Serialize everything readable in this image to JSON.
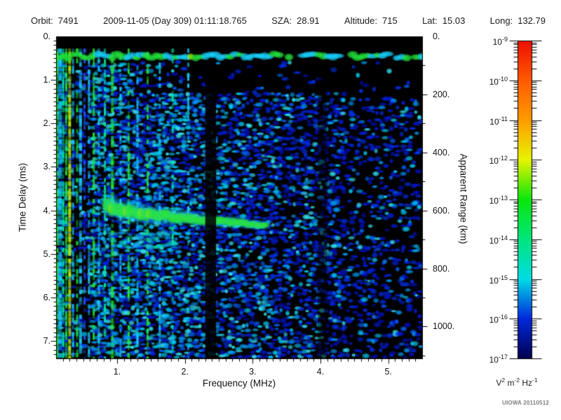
{
  "header": {
    "items": [
      {
        "label": "Orbit:",
        "value": "7491"
      },
      {
        "label": "",
        "value": "2009-11-05 (Day 309) 01:11:18.765"
      },
      {
        "label": "SZA:",
        "value": "28.91"
      },
      {
        "label": "Altitude:",
        "value": "715"
      },
      {
        "label": "Lat:",
        "value": "15.03"
      },
      {
        "label": "Long:",
        "value": "132.79"
      }
    ]
  },
  "credit": "UIOWA 20110512",
  "chart_data": {
    "type": "heatmap",
    "title": "",
    "xlabel": "Frequency (MHz)",
    "ylabel": "Time Delay (ms)",
    "ylabel_right": "Apparent Range (km)",
    "x_range": [
      0.1,
      5.5
    ],
    "x_major_ticks": [
      {
        "v": 1,
        "label": "1."
      },
      {
        "v": 2,
        "label": "2."
      },
      {
        "v": 3,
        "label": "3."
      },
      {
        "v": 4,
        "label": "4."
      },
      {
        "v": 5,
        "label": "5."
      }
    ],
    "x_minor_step": 0.1,
    "y_range": [
      0,
      7.4
    ],
    "y_major_ticks": [
      {
        "v": 0,
        "label": "0."
      },
      {
        "v": 1,
        "label": "1."
      },
      {
        "v": 2,
        "label": "2."
      },
      {
        "v": 3,
        "label": "3."
      },
      {
        "v": 4,
        "label": "4."
      },
      {
        "v": 5,
        "label": "5."
      },
      {
        "v": 6,
        "label": "6."
      },
      {
        "v": 7,
        "label": "7."
      }
    ],
    "y_minor_step": 0.1,
    "right_range": [
      0,
      1110
    ],
    "right_major_ticks": [
      {
        "v": 0,
        "label": "0."
      },
      {
        "v": 200,
        "label": "200."
      },
      {
        "v": 400,
        "label": "400."
      },
      {
        "v": 600,
        "label": "600."
      },
      {
        "v": 800,
        "label": "800."
      },
      {
        "v": 1000,
        "label": "1000."
      }
    ],
    "right_minor_step": 100,
    "colorbar": {
      "label_base": "10",
      "exponents": [
        "-9",
        "-10",
        "-11",
        "-12",
        "-13",
        "-14",
        "-15",
        "-16",
        "-17"
      ],
      "stops": [
        "#ee0e00",
        "#ff5a00",
        "#ff9c00",
        "#e8f400",
        "#0ce60c",
        "#00e67d",
        "#00dce6",
        "#0028dc",
        "#000050"
      ],
      "units": [
        {
          "b": "V",
          "e": "2"
        },
        {
          "b": "m",
          "e": "-2"
        },
        {
          "b": "Hz",
          "e": "-1"
        }
      ]
    },
    "features": {
      "top_echo_band": {
        "delay_ms": [
          0.3,
          0.58
        ],
        "freq_mhz": [
          0.1,
          5.5
        ]
      },
      "echo_trace": {
        "points": [
          {
            "f": 0.84,
            "t": 3.92
          },
          {
            "f": 1.05,
            "t": 4.0
          },
          {
            "f": 1.35,
            "t": 4.06
          },
          {
            "f": 1.7,
            "t": 4.12
          },
          {
            "f": 2.1,
            "t": 4.18
          },
          {
            "f": 2.5,
            "t": 4.24
          },
          {
            "f": 2.9,
            "t": 4.3
          },
          {
            "f": 3.22,
            "t": 4.36
          }
        ],
        "thickness_px": [
          32,
          12
        ],
        "apparent_range_km": 620
      },
      "under_trace_scatter": {
        "f": [
          0.84,
          1.85
        ],
        "t": [
          4.5,
          4.85
        ]
      },
      "plasma_harmonic_stripes": [
        {
          "f": 0.115,
          "w": 4,
          "c": "green",
          "s": 0.97
        },
        {
          "f": 0.16,
          "w": 5,
          "c": "cyan",
          "s": 0.9
        },
        {
          "f": 0.205,
          "w": 3,
          "c": "teal",
          "s": 0.75
        },
        {
          "f": 0.25,
          "w": 3,
          "c": "green",
          "s": 0.85
        },
        {
          "f": 0.3,
          "w": 4,
          "c": "yellow",
          "s": 0.97
        },
        {
          "f": 0.35,
          "w": 3,
          "c": "cyan",
          "s": 0.6
        },
        {
          "f": 0.41,
          "w": 3,
          "c": "green",
          "s": 0.55
        },
        {
          "f": 0.46,
          "w": 4,
          "c": "cyan",
          "s": 0.8
        },
        {
          "f": 0.52,
          "w": 3,
          "c": "blue",
          "s": 0.45
        },
        {
          "f": 0.585,
          "w": 3,
          "c": "cyan",
          "s": 0.55
        },
        {
          "f": 0.655,
          "w": 3,
          "c": "green",
          "s": 0.6
        },
        {
          "f": 0.73,
          "w": 3,
          "c": "cyan",
          "s": 0.5
        },
        {
          "f": 0.82,
          "w": 3,
          "c": "teal",
          "s": 0.55
        },
        {
          "f": 0.93,
          "w": 4,
          "c": "green",
          "s": 0.65
        },
        {
          "f": 1.05,
          "w": 3,
          "c": "cyan",
          "s": 0.5
        },
        {
          "f": 1.17,
          "w": 3,
          "c": "green",
          "s": 0.55
        },
        {
          "f": 1.3,
          "w": 3,
          "c": "cyan",
          "s": 0.45
        },
        {
          "f": 1.45,
          "w": 3,
          "c": "green",
          "s": 0.5
        },
        {
          "f": 1.63,
          "w": 3,
          "c": "cyan",
          "s": 0.4
        },
        {
          "f": 1.82,
          "w": 3,
          "c": "teal",
          "s": 0.35
        },
        {
          "f": 2.05,
          "w": 3,
          "c": "cyan",
          "s": 0.3
        }
      ],
      "dark_columns": [
        {
          "f": [
            2.3,
            2.46
          ],
          "alpha": 0.85
        },
        {
          "f": [
            3.96,
            4.1
          ],
          "alpha": 0.5
        }
      ],
      "noise_rules": [
        [
          0.1,
          5.5,
          0.58,
          7.4,
          0.58,
          0.38
        ],
        [
          0.32,
          0.62,
          0.58,
          7.4,
          0.28,
          0.3
        ],
        [
          0.62,
          1.2,
          0.62,
          1.3,
          0.8,
          0.6
        ],
        [
          0.62,
          2.3,
          1.3,
          7.4,
          0.88,
          0.62
        ],
        [
          2.46,
          3.4,
          1.3,
          7.4,
          0.74,
          0.48
        ],
        [
          3.4,
          4.35,
          1.45,
          7.4,
          0.62,
          0.36
        ],
        [
          4.35,
          5.5,
          1.45,
          7.4,
          0.45,
          0.3
        ],
        [
          1.95,
          5.5,
          0.58,
          1.3,
          0.1,
          0.35
        ],
        [
          1.2,
          1.95,
          0.58,
          1.3,
          0.45,
          0.5
        ],
        [
          4.35,
          5.5,
          1.3,
          1.45,
          0.15,
          0.3
        ]
      ],
      "palette": {
        "green": "#1ee632",
        "cyan": "#19c8ff",
        "teal": "#00e6a0",
        "yellow": "#b4e600",
        "blue": "#2850ff",
        "noise_dark": [
          "#000fc3",
          "#001ee0",
          "#0031f0"
        ],
        "noise_bright": [
          "#0064ff",
          "#00a0ff",
          "#00d2ff",
          "#38ecff"
        ],
        "trace_core": "#2ce61e",
        "trace_halo": "#19d2ff",
        "trace_hot": "#a0e600",
        "band_green": "#22e63c",
        "band_cyan": "#19d2ff",
        "band_yellow": "#9be600",
        "background": "#000000",
        "axis": "#000000",
        "text": "#141414"
      }
    },
    "layout_hint": {
      "grid": false,
      "legend": "colorbar-right",
      "log_colorbar": true
    }
  }
}
